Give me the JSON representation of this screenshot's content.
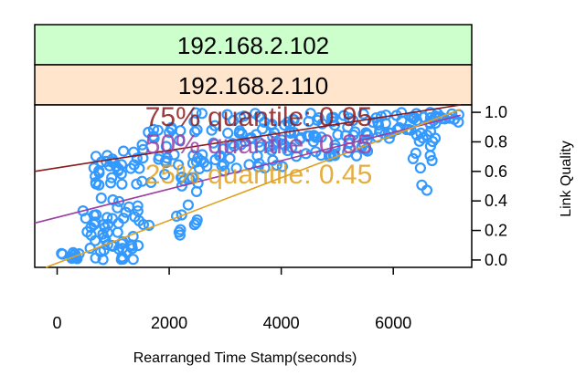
{
  "chart_data": {
    "type": "scatter",
    "strips": [
      "192.168.2.102",
      "192.168.2.110"
    ],
    "strip_colors": [
      "#ccffcc",
      "#ffe5cc"
    ],
    "xlabel": "Rearranged Time Stamp(seconds)",
    "ylabel": "Link Quality",
    "xlim": [
      -400,
      7400
    ],
    "ylim": [
      -0.05,
      1.05
    ],
    "x_ticks": [
      0,
      2000,
      4000,
      6000
    ],
    "x_tick_labels": [
      "0",
      "2000",
      "4000",
      "6000"
    ],
    "y_ticks": [
      0.0,
      0.2,
      0.4,
      0.6,
      0.8,
      1.0
    ],
    "y_tick_labels": [
      "0.0",
      "0.2",
      "0.4",
      "0.6",
      "0.8",
      "1.0"
    ],
    "point_color": "#3399ff",
    "marker": "open-circle",
    "quantile_lines": [
      {
        "label": "75% quantile: 0.95",
        "color": "#8b1a1a",
        "x": [
          -400,
          7200
        ],
        "y": [
          0.6,
          1.05
        ]
      },
      {
        "label": "50% quantile: 0.85",
        "color": "#9b3fa0",
        "x": [
          -400,
          7200
        ],
        "y": [
          0.25,
          0.98
        ]
      },
      {
        "label": "25% quantile: 0.45",
        "color": "#e0a020",
        "x": [
          -200,
          7200
        ],
        "y": [
          -0.05,
          1.02
        ]
      }
    ],
    "clusters": [
      {
        "x0": 0,
        "x1": 450,
        "y0": 0.0,
        "y1": 0.05,
        "n": 10
      },
      {
        "x0": 450,
        "x1": 1000,
        "y0": 0.0,
        "y1": 0.6,
        "n": 30
      },
      {
        "x0": 650,
        "x1": 1150,
        "y0": 0.45,
        "y1": 0.72,
        "n": 14
      },
      {
        "x0": 900,
        "x1": 1700,
        "y0": 0.0,
        "y1": 0.75,
        "n": 36
      },
      {
        "x0": 1050,
        "x1": 1450,
        "y0": 0.0,
        "y1": 0.15,
        "n": 10
      },
      {
        "x0": 1500,
        "x1": 2250,
        "y0": 0.55,
        "y1": 0.9,
        "n": 22
      },
      {
        "x0": 2100,
        "x1": 2600,
        "y0": 0.15,
        "y1": 0.6,
        "n": 16
      },
      {
        "x0": 2400,
        "x1": 4200,
        "y0": 0.6,
        "y1": 1.0,
        "n": 70
      },
      {
        "x0": 4000,
        "x1": 5600,
        "y0": 0.7,
        "y1": 1.0,
        "n": 55
      },
      {
        "x0": 5500,
        "x1": 6800,
        "y0": 0.8,
        "y1": 1.0,
        "n": 45
      },
      {
        "x0": 6300,
        "x1": 6700,
        "y0": 0.45,
        "y1": 0.8,
        "n": 8
      },
      {
        "x0": 6700,
        "x1": 7200,
        "y0": 0.93,
        "y1": 1.0,
        "n": 12
      }
    ]
  }
}
